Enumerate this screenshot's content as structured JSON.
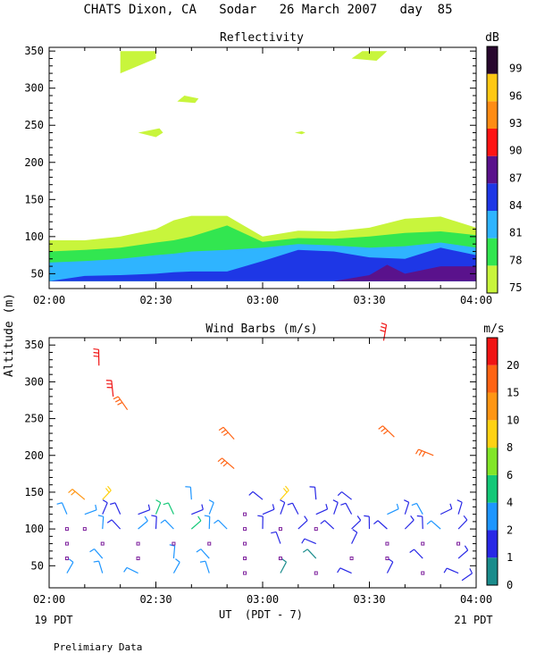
{
  "title": "CHATS Dixon, CA   Sodar   26 March 2007   day  85",
  "ylabel": "Altitude (m)",
  "xlabel": "UT  (PDT - 7)",
  "x_left_date": "19 PDT",
  "x_right_date": "21 PDT",
  "footer": "Prelimiary Data",
  "chart_data": [
    {
      "type": "heatmap",
      "title": "Reflectivity",
      "colorbar_title": "dB",
      "x_ticks": [
        "02:00",
        "02:30",
        "03:00",
        "03:30",
        "04:00"
      ],
      "xlim": [
        "02:00",
        "04:00"
      ],
      "y_ticks": [
        50,
        100,
        150,
        200,
        250,
        300,
        350
      ],
      "ylim": [
        30,
        355
      ],
      "colorbar": {
        "levels": [
          75,
          78,
          81,
          84,
          87,
          90,
          93,
          96,
          99
        ],
        "colors": [
          "#c8f53c",
          "#32e650",
          "#2fb4ff",
          "#1e37e6",
          "#5a128c",
          "#ff1414",
          "#ff8c14",
          "#ffc814",
          "#28082e"
        ]
      },
      "x_minutes": [
        0,
        10,
        20,
        30,
        35,
        40,
        50,
        60,
        70,
        80,
        90,
        100,
        110,
        120
      ],
      "bands": [
        {
          "level": 75,
          "top": [
            95,
            95,
            100,
            110,
            122,
            128,
            128,
            100,
            108,
            107,
            112,
            124,
            127,
            112
          ]
        },
        {
          "level": 78,
          "top": [
            80,
            82,
            85,
            92,
            95,
            100,
            115,
            93,
            98,
            97,
            100,
            105,
            107,
            102
          ]
        },
        {
          "level": 81,
          "top": [
            65,
            67,
            70,
            75,
            77,
            80,
            82,
            85,
            90,
            88,
            85,
            87,
            92,
            85
          ]
        },
        {
          "level": 84,
          "top": [
            40,
            47,
            48,
            50,
            52,
            53,
            53,
            67,
            82,
            80,
            72,
            70,
            85,
            75
          ]
        },
        {
          "level": 87,
          "x_range": [
            80,
            120
          ],
          "top": [
            40,
            48,
            62,
            50,
            60,
            60
          ],
          "top_x": [
            80,
            90,
            95,
            100,
            110,
            120
          ]
        }
      ],
      "patches": [
        {
          "level": 75,
          "x": [
            20,
            20,
            30,
            30
          ],
          "y": [
            320,
            350,
            350,
            340
          ]
        },
        {
          "level": 75,
          "x": [
            85,
            88,
            95,
            92
          ],
          "y": [
            340,
            350,
            350,
            337
          ]
        },
        {
          "level": 75,
          "x": [
            36,
            38,
            42,
            41
          ],
          "y": [
            282,
            290,
            286,
            280
          ]
        },
        {
          "level": 75,
          "x": [
            25,
            31,
            32,
            30
          ],
          "y": [
            240,
            246,
            240,
            234
          ]
        },
        {
          "level": 75,
          "x": [
            69,
            71,
            72,
            71
          ],
          "y": [
            240,
            242,
            240,
            238
          ]
        }
      ]
    },
    {
      "type": "scatter",
      "title": "Wind Barbs (m/s)",
      "colorbar_title": "m/s",
      "x_ticks": [
        "02:00",
        "02:30",
        "03:00",
        "03:30",
        "04:00"
      ],
      "xlim": [
        "02:00",
        "04:00"
      ],
      "y_ticks": [
        50,
        100,
        150,
        200,
        250,
        300,
        350
      ],
      "ylim": [
        20,
        360
      ],
      "colorbar": {
        "labels": [
          "0",
          "1",
          "2",
          "4",
          "6",
          "8",
          "10",
          "15",
          "20"
        ],
        "colors": [
          "#1a8c8c",
          "#2828e6",
          "#1e96ff",
          "#14c878",
          "#82e628",
          "#ffd214",
          "#ff9614",
          "#ff6414",
          "#f01414"
        ]
      },
      "rows": [
        40,
        60,
        80,
        100,
        120,
        140
      ],
      "cols": [
        5,
        10,
        15,
        20,
        25,
        30,
        35,
        40,
        45,
        50,
        55,
        60,
        65,
        70,
        75,
        80,
        85,
        90,
        95,
        100,
        105,
        110,
        115
      ],
      "grid_speeds": [
        [
          3.5,
          null,
          2.5,
          null,
          3,
          null,
          2.6,
          null,
          2.4,
          null,
          0,
          null,
          0.8,
          null,
          0,
          null,
          1.5,
          null,
          1.2,
          null,
          0,
          null,
          1.5
        ],
        [
          0,
          null,
          2,
          null,
          0,
          null,
          3.8,
          null,
          2,
          null,
          0,
          null,
          0,
          null,
          0.9,
          null,
          0,
          null,
          0,
          null,
          1.2,
          null,
          1.8
        ],
        [
          0,
          null,
          0,
          null,
          0,
          null,
          0,
          null,
          0,
          null,
          0,
          null,
          1.6,
          null,
          1.5,
          null,
          1.2,
          null,
          0,
          null,
          0,
          null,
          0
        ],
        [
          0,
          0,
          2.2,
          1.1,
          2.4,
          1.4,
          3.4,
          4.4,
          2.4,
          3.6,
          0,
          1.4,
          0,
          1.6,
          0,
          1.2,
          1.1,
          1.1,
          1.5,
          1.2,
          1.4,
          2.5,
          1.2
        ],
        [
          2.5,
          3.5,
          1.6,
          1.0,
          1.5,
          4.2,
          4.5,
          1.4,
          3.2,
          null,
          0,
          1.2,
          1.3,
          1.4,
          1.1,
          1.3,
          1.2,
          null,
          2.4,
          1.2,
          2.0,
          1.3,
          1.4
        ],
        [
          null,
          11,
          9,
          null,
          null,
          null,
          null,
          2.4,
          null,
          null,
          null,
          1.2,
          9,
          null,
          1.5,
          null,
          1.2,
          null,
          null,
          null,
          null,
          null,
          null
        ]
      ],
      "upper_barbs": [
        {
          "minute": 14,
          "alt": 322,
          "speed": 20
        },
        {
          "minute": 18,
          "alt": 280,
          "speed": 20
        },
        {
          "minute": 22,
          "alt": 262,
          "speed": 15
        },
        {
          "minute": 52,
          "alt": 222,
          "speed": 15
        },
        {
          "minute": 52,
          "alt": 182,
          "speed": 15
        },
        {
          "minute": 94,
          "alt": 356,
          "speed": 20
        },
        {
          "minute": 97,
          "alt": 225,
          "speed": 15
        },
        {
          "minute": 108,
          "alt": 200,
          "speed": 15
        },
        {
          "minute": 116,
          "alt": 30,
          "speed": 1.5
        }
      ]
    }
  ]
}
